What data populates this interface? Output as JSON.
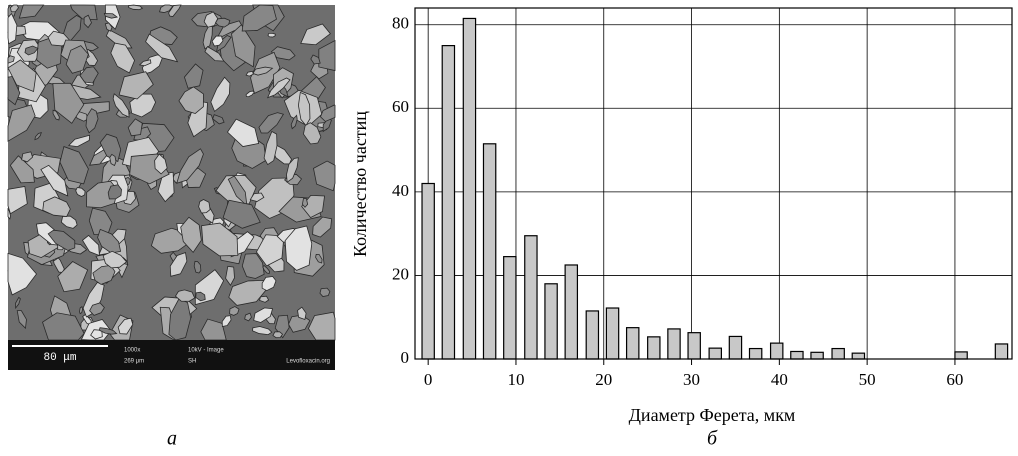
{
  "image": {
    "scale_bar": "80 μm",
    "magnification": "1000x",
    "field": "269 μm",
    "mode": "10kV - Image",
    "detector": "SH",
    "sample": "Levofloxacin.org"
  },
  "panel_labels": [
    "а",
    "б"
  ],
  "chart_data": {
    "type": "bar",
    "x_label": "Диаметр Ферета,  мкм",
    "y_label": "Количество частиц",
    "x": [
      0,
      2.3,
      4.7,
      7,
      9.3,
      11.7,
      14,
      16.3,
      18.7,
      21,
      23.3,
      25.7,
      28,
      30.3,
      32.7,
      35,
      37.3,
      39.7,
      42,
      44.3,
      46.7,
      49,
      60.7,
      65.3
    ],
    "values": [
      42,
      75,
      81.5,
      51.5,
      24.5,
      29.5,
      18,
      22.5,
      11.5,
      12.2,
      7.5,
      5.3,
      7.2,
      6.3,
      2.6,
      5.4,
      2.5,
      3.8,
      1.8,
      1.6,
      2.5,
      1.4,
      1.7,
      3.6
    ],
    "bar_width": 1.4,
    "color": "#c8c8c8",
    "xlim": [
      -1.5,
      66.5
    ],
    "xticks": [
      0,
      10,
      20,
      30,
      40,
      50,
      60
    ],
    "ylim": [
      0,
      84
    ],
    "yticks": [
      0,
      20,
      40,
      60,
      80
    ],
    "grid": true
  }
}
